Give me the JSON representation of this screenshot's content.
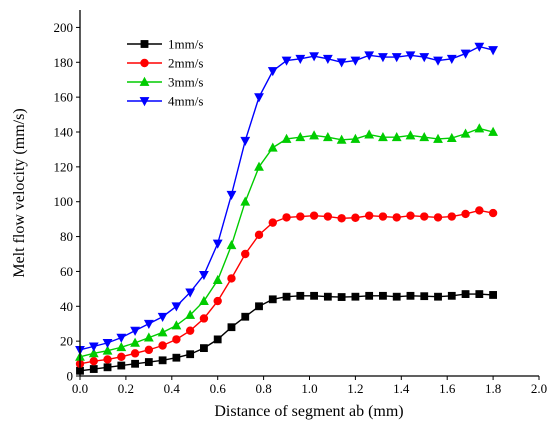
{
  "chart_data": {
    "type": "line",
    "xlabel": "Distance of segment ab (mm)",
    "ylabel": "Melt flow velocity (mm/s)",
    "xlim": [
      0.0,
      2.0
    ],
    "ylim": [
      0,
      210
    ],
    "xticks": [
      "0.0",
      "0.2",
      "0.4",
      "0.6",
      "0.8",
      "1.0",
      "1.2",
      "1.4",
      "1.6",
      "1.8",
      "2.0"
    ],
    "yticks": [
      "0",
      "20",
      "40",
      "60",
      "80",
      "100",
      "120",
      "140",
      "160",
      "180",
      "200"
    ],
    "grid": false,
    "legend_position": "top-left",
    "x": [
      0.0,
      0.06,
      0.12,
      0.18,
      0.24,
      0.3,
      0.36,
      0.42,
      0.48,
      0.54,
      0.6,
      0.66,
      0.72,
      0.78,
      0.84,
      0.9,
      0.96,
      1.02,
      1.08,
      1.14,
      1.2,
      1.26,
      1.32,
      1.38,
      1.44,
      1.5,
      1.56,
      1.62,
      1.68,
      1.74,
      1.8
    ],
    "series": [
      {
        "name": "1mm/s",
        "color": "#000000",
        "marker": "square",
        "values": [
          3,
          4,
          5,
          6,
          7,
          8,
          9,
          10.5,
          12.5,
          16,
          21,
          28,
          34,
          40,
          44,
          45.5,
          46,
          46,
          45.5,
          45.3,
          45.5,
          46,
          46,
          45.5,
          46,
          45.8,
          45.5,
          46,
          47,
          47,
          46.5
        ]
      },
      {
        "name": "2mm/s",
        "color": "#ff0000",
        "marker": "circle",
        "values": [
          7,
          8.5,
          9.5,
          11,
          13,
          15,
          17.5,
          21,
          26,
          33,
          43,
          56,
          70,
          81,
          88,
          91,
          91.5,
          92,
          91.5,
          90.5,
          90.8,
          92,
          91.5,
          91,
          92,
          91.5,
          91,
          91.5,
          93,
          95,
          93.5
        ]
      },
      {
        "name": "3mm/s",
        "color": "#00cc00",
        "marker": "triangle-up",
        "values": [
          11,
          13,
          14.5,
          16.5,
          19,
          22,
          25,
          29,
          35,
          43,
          55,
          75,
          100,
          120,
          131,
          136,
          137,
          138,
          137,
          135.5,
          136,
          138.5,
          137,
          137,
          138,
          137,
          136,
          136.5,
          139,
          142,
          140
        ]
      },
      {
        "name": "4mm/s",
        "color": "#0000ff",
        "marker": "triangle-down",
        "values": [
          15,
          17,
          19,
          22,
          26,
          30,
          34,
          40,
          48,
          58,
          76,
          104,
          135,
          160,
          175,
          181,
          182,
          183.5,
          182,
          180,
          181,
          184,
          183,
          183,
          184,
          183,
          181,
          182,
          185,
          189,
          187
        ]
      }
    ]
  }
}
